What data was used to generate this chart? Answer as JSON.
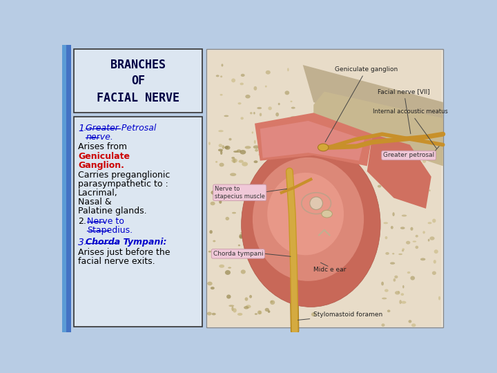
{
  "bg_color": "#b8cce4",
  "title_box_color": "#dce6f1",
  "title_box_border": "#333333",
  "title_lines": [
    "BRANCHES",
    "OF",
    "FACIAL NERVE"
  ],
  "title_fontsize": 12,
  "content_box_color": "#dce6f1",
  "content_box_border": "#333333",
  "blue1": "#0000cc",
  "red1": "#cc0000",
  "side_bar_color": "#4472c4",
  "content_fontsize": 9.0,
  "right_bg": "#f0e8d8",
  "bone_color": "#d8c8a0",
  "bone_dark": "#b8a878",
  "pink_tissue": "#c87060",
  "pink_tissue2": "#e09080",
  "pink_tissue3": "#d88070",
  "pink_light": "#e8a898",
  "ganglion_color": "#d4a030",
  "nerve_yellow": "#c8902a",
  "gray_tissue": "#a89878",
  "label_box": "#f0c8d8",
  "label_box_edge": "#c898a8",
  "annot_line": "#444444",
  "right_border": "#888888"
}
